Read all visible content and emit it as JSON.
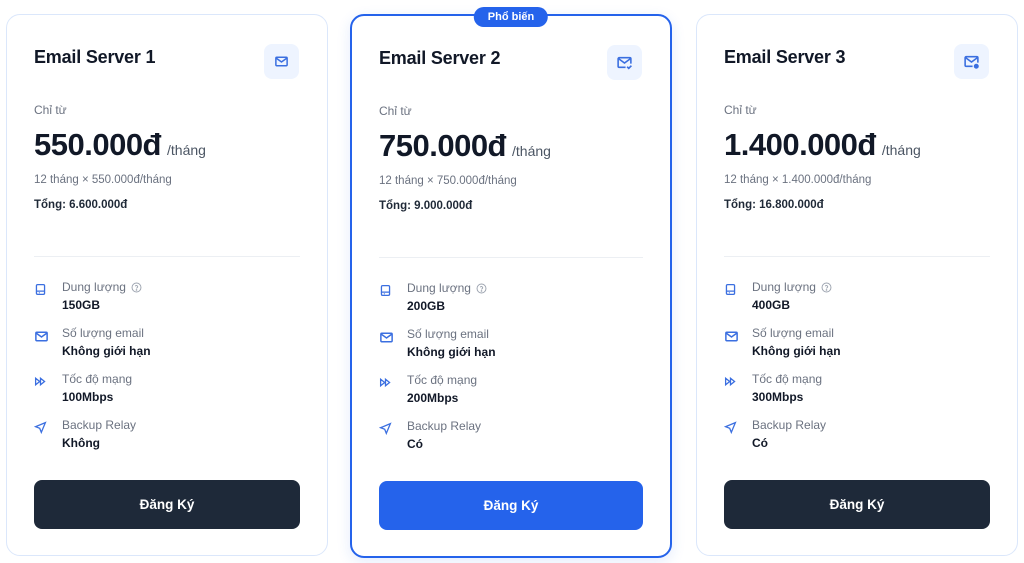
{
  "accent_color": "#2563eb",
  "dark_button_color": "#1e2939",
  "plans": [
    {
      "title": "Email Server 1",
      "icon": "mail-icon",
      "popular": false,
      "from_label": "Chỉ từ",
      "price": "550.000đ",
      "unit": "/tháng",
      "calc": "12 tháng × 550.000đ/tháng",
      "total": "Tổng: 6.600.000đ",
      "features": [
        {
          "icon": "hard-drive-icon",
          "label": "Dung lượng",
          "help": true,
          "value": "150GB"
        },
        {
          "icon": "mail-icon",
          "label": "Số lượng email",
          "value": "Không giới hạn"
        },
        {
          "icon": "fast-forward-icon",
          "label": "Tốc độ mạng",
          "value": "100Mbps"
        },
        {
          "icon": "send-icon",
          "label": "Backup Relay",
          "value": "Không"
        }
      ],
      "button": "Đăng Ký"
    },
    {
      "title": "Email Server 2",
      "icon": "mail-check-icon",
      "popular": true,
      "badge": "Phổ biến",
      "from_label": "Chỉ từ",
      "price": "750.000đ",
      "unit": "/tháng",
      "calc": "12 tháng × 750.000đ/tháng",
      "total": "Tổng: 9.000.000đ",
      "features": [
        {
          "icon": "hard-drive-icon",
          "label": "Dung lượng",
          "help": true,
          "value": "200GB"
        },
        {
          "icon": "mail-icon",
          "label": "Số lượng email",
          "value": "Không giới hạn"
        },
        {
          "icon": "fast-forward-icon",
          "label": "Tốc độ mạng",
          "value": "200Mbps"
        },
        {
          "icon": "send-icon",
          "label": "Backup Relay",
          "value": "Có"
        }
      ],
      "button": "Đăng Ký"
    },
    {
      "title": "Email Server 3",
      "icon": "mail-cog-icon",
      "popular": false,
      "from_label": "Chỉ từ",
      "price": "1.400.000đ",
      "unit": "/tháng",
      "calc": "12 tháng × 1.400.000đ/tháng",
      "total": "Tổng: 16.800.000đ",
      "features": [
        {
          "icon": "hard-drive-icon",
          "label": "Dung lượng",
          "help": true,
          "value": "400GB"
        },
        {
          "icon": "mail-icon",
          "label": "Số lượng email",
          "value": "Không giới hạn"
        },
        {
          "icon": "fast-forward-icon",
          "label": "Tốc độ mạng",
          "value": "300Mbps"
        },
        {
          "icon": "send-icon",
          "label": "Backup Relay",
          "value": "Có"
        }
      ],
      "button": "Đăng Ký"
    }
  ]
}
